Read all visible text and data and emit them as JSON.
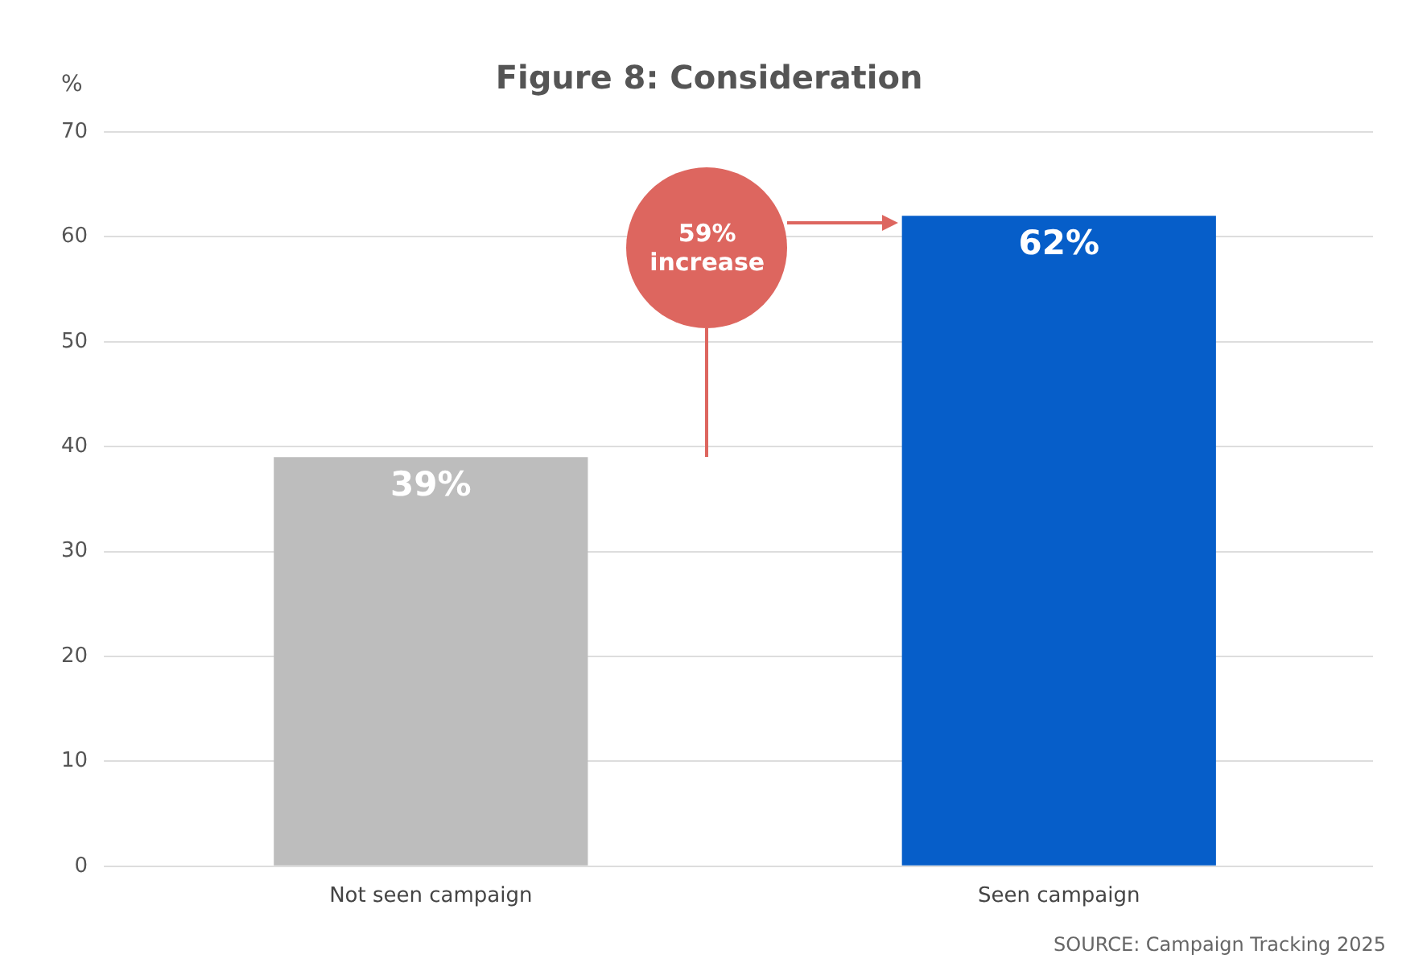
{
  "chart_data": {
    "type": "bar",
    "title": "Figure 8: Consideration",
    "ylabel": "%",
    "categories": [
      "Not seen campaign",
      "Seen campaign"
    ],
    "values": [
      39,
      62
    ],
    "colors": [
      "#bdbdbd",
      "#065ec9"
    ],
    "value_labels": [
      "39%",
      "62%"
    ],
    "ylim": [
      0,
      70
    ],
    "yticks": [
      0,
      10,
      20,
      30,
      40,
      50,
      60,
      70
    ],
    "grid": "y",
    "legend": false,
    "annotations": [
      "59% increase",
      "SOURCE: Campaign Tracking 2025"
    ]
  }
}
